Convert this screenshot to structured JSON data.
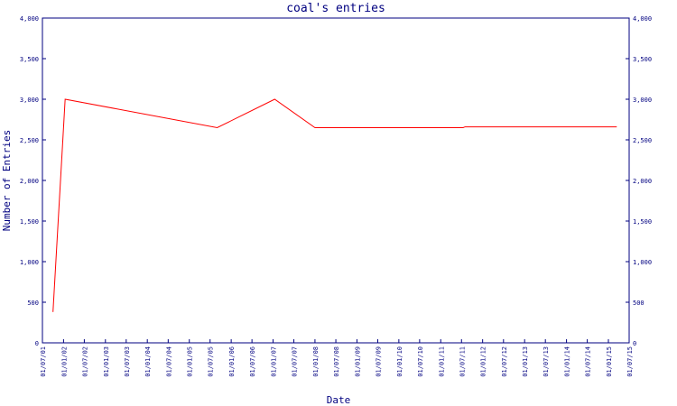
{
  "chart_data": {
    "type": "line",
    "title": "coal's entries",
    "x_label": "Date",
    "y_label": "Number of Entries",
    "x": [
      "01/10/01",
      "15/01/02",
      "01/09/05",
      "15/01/07",
      "01/01/08",
      "15/07/11",
      "01/08/11",
      "15/03/15"
    ],
    "values": [
      380,
      3000,
      2650,
      3000,
      2650,
      2650,
      2660,
      2660
    ],
    "color": "#ff0000",
    "xlim": [
      "01/07/01",
      "01/07/15"
    ],
    "xticks": [
      "01/07/01",
      "01/01/02",
      "01/07/02",
      "01/01/03",
      "01/07/03",
      "01/01/04",
      "01/07/04",
      "01/01/05",
      "01/07/05",
      "01/01/06",
      "01/07/06",
      "01/01/07",
      "01/07/07",
      "01/01/08",
      "01/07/08",
      "01/01/09",
      "01/07/09",
      "01/01/10",
      "01/07/10",
      "01/01/11",
      "01/07/11",
      "01/01/12",
      "01/07/12",
      "01/01/13",
      "01/07/13",
      "01/01/14",
      "01/07/14",
      "01/01/15",
      "01/07/15"
    ],
    "ylim": [
      0,
      4000
    ],
    "yticks": [
      0,
      500,
      {
        "value": 1000,
        "label": "1,000"
      },
      {
        "value": 1500,
        "label": "1,500"
      },
      {
        "value": 2000,
        "label": "2,000"
      },
      {
        "value": 2500,
        "label": "2,500"
      },
      {
        "value": 3000,
        "label": "3,000"
      },
      {
        "value": 3500,
        "label": "3,500"
      },
      {
        "value": 4000,
        "label": "4,000"
      }
    ],
    "y2lim": [
      0,
      4000
    ],
    "y2ticks": [
      0,
      500,
      {
        "value": 1000,
        "label": "1,000"
      },
      {
        "value": 1500,
        "label": "1,500"
      },
      {
        "value": 2000,
        "label": "2,000"
      },
      {
        "value": 2500,
        "label": "2,500"
      },
      {
        "value": 3000,
        "label": "3,000"
      },
      {
        "value": 3500,
        "label": "3,500"
      },
      {
        "value": 4000,
        "label": "4,000"
      }
    ],
    "axis_color": "#000080"
  }
}
